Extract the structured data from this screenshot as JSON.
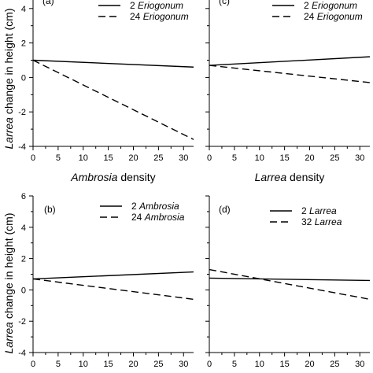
{
  "figure": {
    "ylabel_italic": "Larrea",
    "ylabel_rest": " change in height (cm)"
  },
  "chart_data": [
    {
      "type": "line",
      "panel_label": "(a)",
      "xlabel_italic": "Ambrosia",
      "xlabel_rest": " density",
      "xlim": [
        0,
        32
      ],
      "ylim": [
        -4,
        6
      ],
      "xticks": [
        0,
        5,
        10,
        15,
        20,
        25,
        30
      ],
      "yticks": [
        -4,
        -2,
        0,
        2,
        4
      ],
      "series": [
        {
          "name_num": "2",
          "name_taxon": "Eriogonum",
          "style": "solid",
          "x": [
            0,
            32
          ],
          "y": [
            1.0,
            0.6
          ]
        },
        {
          "name_num": "24",
          "name_taxon": "Eriogonum",
          "style": "dashed",
          "x": [
            0,
            32
          ],
          "y": [
            1.0,
            -3.6
          ]
        }
      ]
    },
    {
      "type": "line",
      "panel_label": "(c)",
      "xlabel_italic": "Larrea",
      "xlabel_rest": " density",
      "xlim": [
        0,
        32
      ],
      "ylim": [
        -4,
        6
      ],
      "xticks": [
        0,
        5,
        10,
        15,
        20,
        25,
        30
      ],
      "yticks": [],
      "series": [
        {
          "name_num": "2",
          "name_taxon": "Eriogonum",
          "style": "solid",
          "x": [
            0,
            32
          ],
          "y": [
            0.7,
            1.2
          ]
        },
        {
          "name_num": "24",
          "name_taxon": "Eriogonum",
          "style": "dashed",
          "x": [
            0,
            32
          ],
          "y": [
            0.7,
            -0.3
          ]
        }
      ]
    },
    {
      "type": "line",
      "panel_label": "(b)",
      "xlabel_italic": "",
      "xlabel_rest": "",
      "xlim": [
        0,
        32
      ],
      "ylim": [
        -4,
        6
      ],
      "xticks": [
        0,
        5,
        10,
        15,
        20,
        25,
        30
      ],
      "yticks": [
        -4,
        -2,
        0,
        2,
        4,
        6
      ],
      "series": [
        {
          "name_num": "2",
          "name_taxon": "Ambrosia",
          "style": "solid",
          "x": [
            0,
            32
          ],
          "y": [
            0.7,
            1.15
          ]
        },
        {
          "name_num": "24",
          "name_taxon": "Ambrosia",
          "style": "dashed",
          "x": [
            0,
            32
          ],
          "y": [
            0.7,
            -0.6
          ]
        }
      ]
    },
    {
      "type": "line",
      "panel_label": "(d)",
      "xlabel_italic": "",
      "xlabel_rest": "",
      "xlim": [
        0,
        32
      ],
      "ylim": [
        -4,
        6
      ],
      "xticks": [
        0,
        5,
        10,
        15,
        20,
        25,
        30
      ],
      "yticks": [],
      "series": [
        {
          "name_num": "2",
          "name_taxon": "Larrea",
          "style": "solid",
          "x": [
            0,
            32
          ],
          "y": [
            0.75,
            0.6
          ]
        },
        {
          "name_num": "32",
          "name_taxon": "Larrea",
          "style": "dashed",
          "x": [
            0,
            32
          ],
          "y": [
            1.3,
            -0.6
          ]
        }
      ]
    }
  ]
}
